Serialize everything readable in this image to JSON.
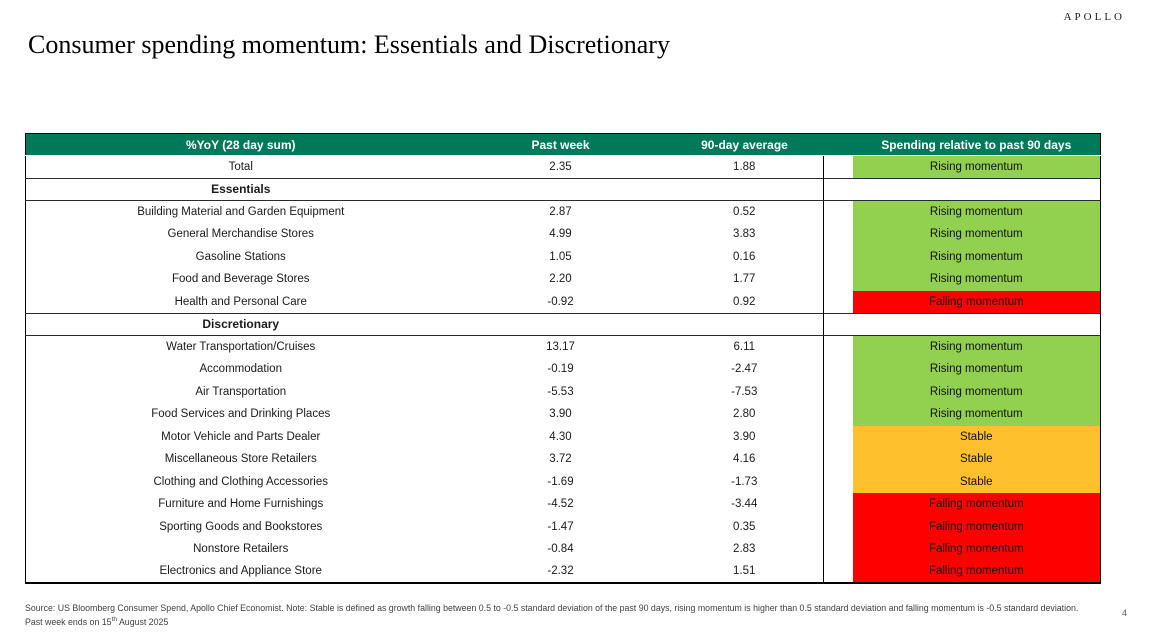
{
  "brand": "APOLLO",
  "title": "Consumer spending momentum: Essentials and Discretionary",
  "page_number": "4",
  "theme": {
    "header_bg": "#00795A",
    "status_colors": {
      "rising": "#92D050",
      "stable": "#FFC02E",
      "falling": "#FF0000"
    }
  },
  "main": {
    "table": {
      "columns": [
        "%YoY (28 day sum)",
        "Past week",
        "90-day average",
        "Spending relative to past 90 days"
      ],
      "rows": [
        {
          "type": "data",
          "name": "Total",
          "past_week": "2.35",
          "avg_90d": "1.88",
          "status": "rising",
          "status_label": "Rising momentum"
        },
        {
          "type": "section",
          "name": "Essentials"
        },
        {
          "type": "data",
          "name": "Building Material and Garden Equipment",
          "past_week": "2.87",
          "avg_90d": "0.52",
          "status": "rising",
          "status_label": "Rising momentum"
        },
        {
          "type": "data",
          "name": "General Merchandise Stores",
          "past_week": "4.99",
          "avg_90d": "3.83",
          "status": "rising",
          "status_label": "Rising momentum"
        },
        {
          "type": "data",
          "name": "Gasoline Stations",
          "past_week": "1.05",
          "avg_90d": "0.16",
          "status": "rising",
          "status_label": "Rising momentum"
        },
        {
          "type": "data",
          "name": "Food and Beverage Stores",
          "past_week": "2.20",
          "avg_90d": "1.77",
          "status": "rising",
          "status_label": "Rising momentum"
        },
        {
          "type": "data",
          "name": "Health and Personal Care",
          "past_week": "-0.92",
          "avg_90d": "0.92",
          "status": "falling",
          "status_label": "Falling momentum"
        },
        {
          "type": "section",
          "name": "Discretionary"
        },
        {
          "type": "data",
          "name": "Water Transportation/Cruises",
          "past_week": "13.17",
          "avg_90d": "6.11",
          "status": "rising",
          "status_label": "Rising momentum"
        },
        {
          "type": "data",
          "name": "Accommodation",
          "past_week": "-0.19",
          "avg_90d": "-2.47",
          "status": "rising",
          "status_label": "Rising momentum"
        },
        {
          "type": "data",
          "name": "Air Transportation",
          "past_week": "-5.53",
          "avg_90d": "-7.53",
          "status": "rising",
          "status_label": "Rising momentum"
        },
        {
          "type": "data",
          "name": "Food Services and Drinking Places",
          "past_week": "3.90",
          "avg_90d": "2.80",
          "status": "rising",
          "status_label": "Rising momentum"
        },
        {
          "type": "data",
          "name": "Motor Vehicle and Parts Dealer",
          "past_week": "4.30",
          "avg_90d": "3.90",
          "status": "stable",
          "status_label": "Stable"
        },
        {
          "type": "data",
          "name": "Miscellaneous Store Retailers",
          "past_week": "3.72",
          "avg_90d": "4.16",
          "status": "stable",
          "status_label": "Stable"
        },
        {
          "type": "data",
          "name": "Clothing and Clothing Accessories",
          "past_week": "-1.69",
          "avg_90d": "-1.73",
          "status": "stable",
          "status_label": "Stable"
        },
        {
          "type": "data",
          "name": "Furniture and Home Furnishings",
          "past_week": "-4.52",
          "avg_90d": "-3.44",
          "status": "falling",
          "status_label": "Falling momentum"
        },
        {
          "type": "data",
          "name": "Sporting Goods and Bookstores",
          "past_week": "-1.47",
          "avg_90d": "0.35",
          "status": "falling",
          "status_label": "Falling momentum"
        },
        {
          "type": "data",
          "name": "Nonstore Retailers",
          "past_week": "-0.84",
          "avg_90d": "2.83",
          "status": "falling",
          "status_label": "Falling momentum"
        },
        {
          "type": "data",
          "name": "Electronics and Appliance Store",
          "past_week": "-2.32",
          "avg_90d": "1.51",
          "status": "falling",
          "status_label": "Falling momentum"
        }
      ]
    }
  },
  "footnote": {
    "part1": "Source: US Bloomberg Consumer Spend, Apollo Chief Economist. Note: Stable is defined as growth falling between 0.5 to -0.5 standard deviation of the past 90 days, rising momentum is higher than 0.5 standard deviation and falling momentum is -0.5 standard deviation. Past week ends on 15",
    "sup": "th",
    "part2": " August 2025"
  }
}
